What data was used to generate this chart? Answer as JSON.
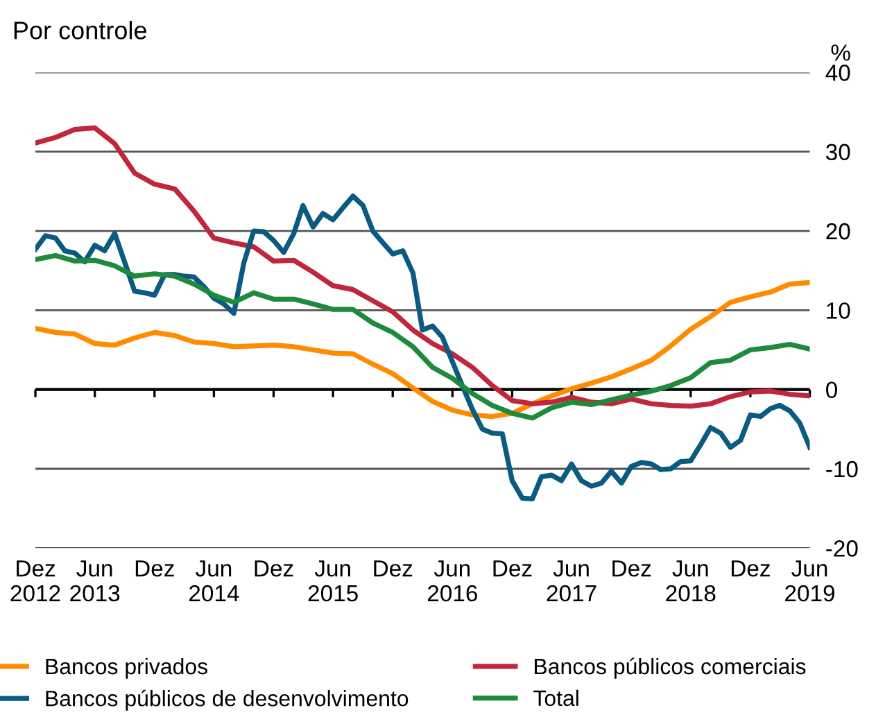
{
  "chart_data": {
    "type": "line",
    "title": "Por controle",
    "ylabel": "%",
    "ylim": [
      -20,
      40
    ],
    "yticks": [
      -20,
      -10,
      0,
      10,
      20,
      30,
      40
    ],
    "xlim": [
      "2012-12",
      "2019-06"
    ],
    "xticks": [
      {
        "value": "2012-12",
        "label": "Dez\n2012"
      },
      {
        "value": "2013-06",
        "label": "Jun\n2013"
      },
      {
        "value": "2013-12",
        "label": "Dez"
      },
      {
        "value": "2014-06",
        "label": "Jun\n2014"
      },
      {
        "value": "2014-12",
        "label": "Dez"
      },
      {
        "value": "2015-06",
        "label": "Jun\n2015"
      },
      {
        "value": "2015-12",
        "label": "Dez"
      },
      {
        "value": "2016-06",
        "label": "Jun\n2016"
      },
      {
        "value": "2016-12",
        "label": "Dez"
      },
      {
        "value": "2017-06",
        "label": "Jun\n2017"
      },
      {
        "value": "2017-12",
        "label": "Dez"
      },
      {
        "value": "2018-06",
        "label": "Jun\n2018"
      },
      {
        "value": "2018-12",
        "label": "Dez"
      },
      {
        "value": "2019-06",
        "label": "Jun\n2019"
      }
    ],
    "x": [
      "2012-12",
      "2013-02",
      "2013-04",
      "2013-06",
      "2013-08",
      "2013-10",
      "2013-12",
      "2014-02",
      "2014-04",
      "2014-06",
      "2014-08",
      "2014-10",
      "2014-12",
      "2015-02",
      "2015-04",
      "2015-06",
      "2015-08",
      "2015-10",
      "2015-12",
      "2016-02",
      "2016-04",
      "2016-06",
      "2016-08",
      "2016-10",
      "2016-12",
      "2017-02",
      "2017-04",
      "2017-06",
      "2017-08",
      "2017-10",
      "2017-12",
      "2018-02",
      "2018-04",
      "2018-06",
      "2018-08",
      "2018-10",
      "2018-12",
      "2019-02",
      "2019-04",
      "2019-06"
    ],
    "grid": "y",
    "legend": "bottom",
    "line_style": "solid",
    "series": [
      {
        "name": "Bancos privados",
        "color": "#ff8c00",
        "values": [
          7.7,
          7.2,
          7.0,
          5.8,
          5.6,
          6.5,
          7.2,
          6.8,
          6.0,
          5.8,
          5.4,
          5.5,
          5.6,
          5.4,
          5.0,
          4.6,
          4.5,
          3.2,
          2.0,
          0.2,
          -1.5,
          -2.6,
          -3.2,
          -3.4,
          -3.0,
          -1.8,
          -0.8,
          0.1,
          0.8,
          1.6,
          2.6,
          3.7,
          5.5,
          7.6,
          9.2,
          11.0,
          11.7,
          12.3,
          13.3,
          13.5
        ]
      },
      {
        "name": "Bancos públicos comerciais",
        "color": "#c0273a",
        "values": [
          31.1,
          31.8,
          32.8,
          33.0,
          31.0,
          27.3,
          25.9,
          25.3,
          22.5,
          19.1,
          18.5,
          18.0,
          16.2,
          16.3,
          14.8,
          13.1,
          12.6,
          11.2,
          9.8,
          7.5,
          5.8,
          4.5,
          2.8,
          0.5,
          -1.4,
          -1.8,
          -1.6,
          -1.0,
          -1.6,
          -1.8,
          -1.2,
          -1.8,
          -2.0,
          -2.1,
          -1.8,
          -0.9,
          -0.3,
          -0.2,
          -0.6,
          -0.8
        ]
      },
      {
        "name": "Bancos públicos de desenvolvimento",
        "color": "#0b5a80",
        "x": [
          "2012-12",
          "2013-01",
          "2013-02",
          "2013-03",
          "2013-04",
          "2013-05",
          "2013-06",
          "2013-07",
          "2013-08",
          "2013-09",
          "2013-10",
          "2013-11",
          "2013-12",
          "2014-01",
          "2014-02",
          "2014-03",
          "2014-04",
          "2014-05",
          "2014-06",
          "2014-07",
          "2014-08",
          "2014-09",
          "2014-10",
          "2014-11",
          "2014-12",
          "2015-01",
          "2015-02",
          "2015-03",
          "2015-04",
          "2015-05",
          "2015-06",
          "2015-07",
          "2015-08",
          "2015-09",
          "2015-10",
          "2015-11",
          "2015-12",
          "2016-01",
          "2016-02",
          "2016-03",
          "2016-04",
          "2016-05",
          "2016-06",
          "2016-07",
          "2016-08",
          "2016-09",
          "2016-10",
          "2016-11",
          "2016-12",
          "2017-01",
          "2017-02",
          "2017-03",
          "2017-04",
          "2017-05",
          "2017-06",
          "2017-07",
          "2017-08",
          "2017-09",
          "2017-10",
          "2017-11",
          "2017-12",
          "2018-01",
          "2018-02",
          "2018-03",
          "2018-04",
          "2018-05",
          "2018-06",
          "2018-07",
          "2018-08",
          "2018-09",
          "2018-10",
          "2018-11",
          "2018-12",
          "2019-01",
          "2019-02",
          "2019-03",
          "2019-04",
          "2019-05",
          "2019-06"
        ],
        "values": [
          17.7,
          19.4,
          19.1,
          17.5,
          17.2,
          16.1,
          18.2,
          17.5,
          19.7,
          16.0,
          12.4,
          12.2,
          11.9,
          14.5,
          14.5,
          14.3,
          14.2,
          13.0,
          11.5,
          10.8,
          9.6,
          16.0,
          20.0,
          19.9,
          18.8,
          17.3,
          19.7,
          23.2,
          20.5,
          22.2,
          21.4,
          22.9,
          24.4,
          23.2,
          20.0,
          18.5,
          17.1,
          17.5,
          14.7,
          7.5,
          8.0,
          6.6,
          3.5,
          0.5,
          -2.5,
          -5.0,
          -5.5,
          -5.6,
          -11.5,
          -13.7,
          -13.8,
          -11.0,
          -10.8,
          -11.5,
          -9.4,
          -11.5,
          -12.2,
          -11.8,
          -10.3,
          -11.8,
          -9.7,
          -9.2,
          -9.4,
          -10.1,
          -10.0,
          -9.1,
          -9.0,
          -7.0,
          -4.8,
          -5.5,
          -7.3,
          -6.4,
          -3.2,
          -3.4,
          -2.4,
          -2.0,
          -2.7,
          -4.2,
          -7.3
        ]
      },
      {
        "name": "Total",
        "color": "#1e8b3c",
        "values": [
          16.4,
          16.9,
          16.2,
          16.3,
          15.6,
          14.3,
          14.6,
          14.3,
          13.3,
          11.9,
          11.0,
          12.2,
          11.4,
          11.4,
          10.8,
          10.1,
          10.1,
          8.4,
          7.2,
          5.4,
          2.8,
          1.4,
          -0.5,
          -2.0,
          -3.0,
          -3.6,
          -2.3,
          -1.6,
          -1.9,
          -1.3,
          -0.7,
          -0.2,
          0.5,
          1.5,
          3.4,
          3.7,
          5.0,
          5.3,
          5.7,
          5.1
        ]
      }
    ]
  }
}
